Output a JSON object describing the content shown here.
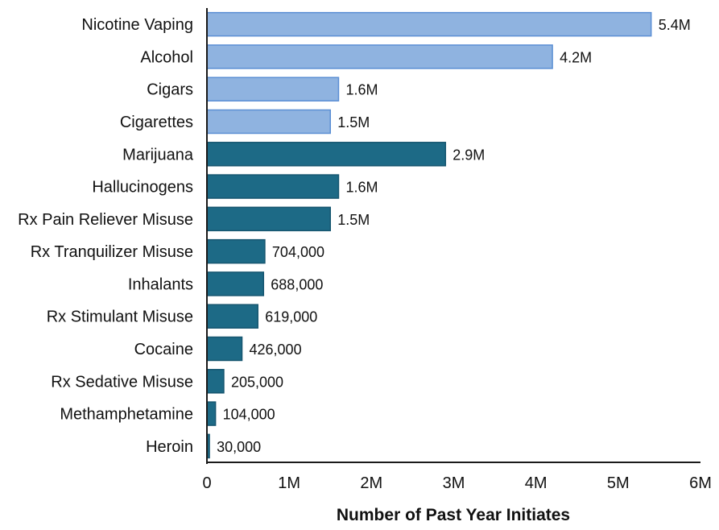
{
  "chart_data": {
    "type": "bar",
    "orientation": "horizontal",
    "title": "",
    "xlabel": "Number of Past Year Initiates",
    "ylabel": "",
    "xlim": [
      0,
      6000000
    ],
    "grid": false,
    "legend": "none",
    "categories": [
      "Nicotine Vaping",
      "Alcohol",
      "Cigars",
      "Cigarettes",
      "Marijuana",
      "Hallucinogens",
      "Rx Pain Reliever Misuse",
      "Rx Tranquilizer Misuse",
      "Inhalants",
      "Rx Stimulant Misuse",
      "Cocaine",
      "Rx Sedative Misuse",
      "Methamphetamine",
      "Heroin"
    ],
    "values": [
      5400000,
      4200000,
      1600000,
      1500000,
      2900000,
      1600000,
      1500000,
      704000,
      688000,
      619000,
      426000,
      205000,
      104000,
      30000
    ],
    "value_labels": [
      "5.4M",
      "4.2M",
      "1.6M",
      "1.5M",
      "2.9M",
      "1.6M",
      "1.5M",
      "704,000",
      "688,000",
      "619,000",
      "426,000",
      "205,000",
      "104,000",
      "30,000"
    ],
    "bar_colors": [
      "#8fb3e0",
      "#8fb3e0",
      "#8fb3e0",
      "#8fb3e0",
      "#1d6a86",
      "#1d6a86",
      "#1d6a86",
      "#1d6a86",
      "#1d6a86",
      "#1d6a86",
      "#1d6a86",
      "#1d6a86",
      "#1d6a86",
      "#1d6a86"
    ],
    "bar_border_colors": [
      "#5b8fd4",
      "#5b8fd4",
      "#5b8fd4",
      "#5b8fd4",
      "#165670",
      "#165670",
      "#165670",
      "#165670",
      "#165670",
      "#165670",
      "#165670",
      "#165670",
      "#165670",
      "#165670"
    ],
    "x_ticks": [
      0,
      1000000,
      2000000,
      3000000,
      4000000,
      5000000,
      6000000
    ],
    "x_tick_labels": [
      "0",
      "1M",
      "2M",
      "3M",
      "4M",
      "5M",
      "6M"
    ]
  }
}
